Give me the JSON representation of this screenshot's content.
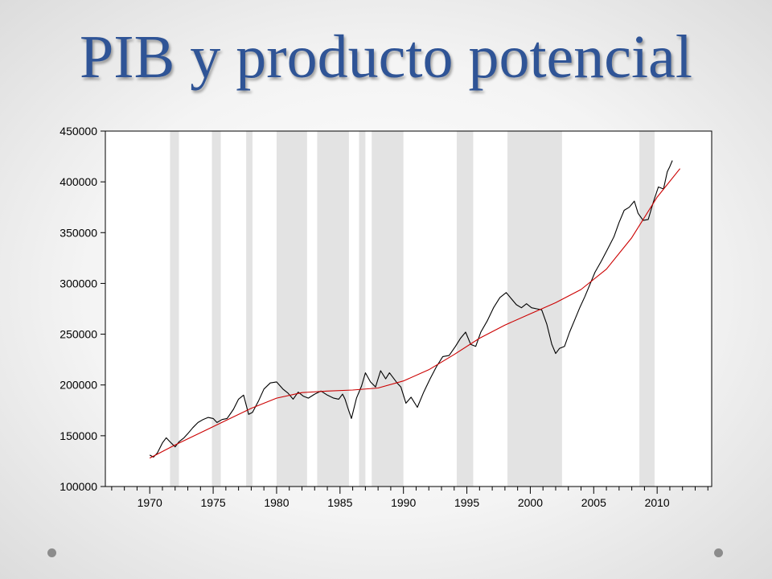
{
  "slide": {
    "title": "PIB y producto potencial",
    "dot_color": "#8c8c8c",
    "title_color": "#2f5496"
  },
  "chart_data": {
    "type": "line",
    "title": "",
    "xlabel": "",
    "ylabel": "",
    "xlim": [
      1966.5,
      2014.3
    ],
    "ylim": [
      100000,
      450000
    ],
    "xticks": [
      1970,
      1975,
      1980,
      1985,
      1990,
      1995,
      2000,
      2005,
      2010
    ],
    "xtick_labels": [
      "1970",
      "1975",
      "1980",
      "1985",
      "1990",
      "1995",
      "2000",
      "2005",
      "2010"
    ],
    "yticks": [
      100000,
      150000,
      200000,
      250000,
      300000,
      350000,
      400000,
      450000
    ],
    "ytick_labels": [
      "100000",
      "150000",
      "200000",
      "250000",
      "300000",
      "350000",
      "400000",
      "450000"
    ],
    "grid": false,
    "legend": "none",
    "shaded_periods": [
      [
        1971.6,
        1972.3
      ],
      [
        1974.9,
        1975.6
      ],
      [
        1977.6,
        1978.1
      ],
      [
        1980.0,
        1982.4
      ],
      [
        1983.2,
        1985.7
      ],
      [
        1986.5,
        1987.0
      ],
      [
        1987.5,
        1990.0
      ],
      [
        1994.2,
        1995.5
      ],
      [
        1998.2,
        2002.5
      ],
      [
        2008.6,
        2009.8
      ]
    ],
    "series": [
      {
        "color": "#000000",
        "x": [
          1970.0,
          1970.3,
          1970.6,
          1971.0,
          1971.3,
          1971.6,
          1972.0,
          1972.3,
          1972.7,
          1973.0,
          1973.4,
          1973.8,
          1974.2,
          1974.6,
          1975.0,
          1975.3,
          1975.7,
          1976.1,
          1976.6,
          1977.0,
          1977.4,
          1977.8,
          1978.1,
          1978.6,
          1979.0,
          1979.5,
          1980.0,
          1980.5,
          1980.9,
          1981.3,
          1981.7,
          1982.1,
          1982.5,
          1983.0,
          1983.5,
          1984.0,
          1984.5,
          1984.9,
          1985.2,
          1985.4,
          1985.6,
          1985.9,
          1986.3,
          1986.7,
          1987.0,
          1987.4,
          1987.8,
          1988.2,
          1988.6,
          1988.9,
          1989.2,
          1989.5,
          1989.8,
          1990.2,
          1990.6,
          1991.1,
          1991.6,
          1992.1,
          1992.6,
          1993.1,
          1993.6,
          1994.1,
          1994.5,
          1994.9,
          1995.3,
          1995.7,
          1996.1,
          1996.6,
          1997.1,
          1997.6,
          1998.1,
          1998.5,
          1998.9,
          1999.3,
          1999.7,
          2000.1,
          2000.5,
          2000.9,
          2001.3,
          2001.7,
          2002.0,
          2002.3,
          2002.7,
          2003.1,
          2003.5,
          2003.9,
          2004.3,
          2004.7,
          2005.1,
          2005.6,
          2006.1,
          2006.6,
          2007.0,
          2007.4,
          2007.8,
          2008.2,
          2008.5,
          2008.9,
          2009.3,
          2009.7,
          2010.1,
          2010.5,
          2010.8,
          2011.0,
          2011.2
        ],
        "y": [
          131000,
          129000,
          133000,
          143000,
          148000,
          144000,
          139000,
          144000,
          148000,
          152000,
          158000,
          163000,
          166000,
          168000,
          167000,
          163000,
          166000,
          167000,
          176000,
          186000,
          190000,
          171000,
          173000,
          185000,
          196000,
          202000,
          203000,
          196000,
          192000,
          186000,
          193000,
          189000,
          187000,
          191000,
          194000,
          190000,
          187000,
          186000,
          191000,
          186000,
          178000,
          167000,
          187000,
          199000,
          212000,
          203000,
          198000,
          214000,
          206000,
          212000,
          207000,
          202000,
          198000,
          182000,
          188000,
          178000,
          193000,
          206000,
          218000,
          228000,
          229000,
          238000,
          246000,
          252000,
          240000,
          238000,
          252000,
          263000,
          276000,
          286000,
          291000,
          285000,
          279000,
          276000,
          280000,
          276000,
          275000,
          274000,
          260000,
          240000,
          231000,
          236000,
          238000,
          252000,
          264000,
          276000,
          287000,
          299000,
          311000,
          322000,
          334000,
          346000,
          360000,
          372000,
          375000,
          381000,
          369000,
          362000,
          363000,
          380000,
          395000,
          393000,
          410000,
          415000,
          421000
        ]
      },
      {
        "color": "#cc0000",
        "x": [
          1970.0,
          1972.0,
          1974.0,
          1976.0,
          1978.0,
          1980.0,
          1982.0,
          1984.0,
          1986.0,
          1988.0,
          1990.0,
          1992.0,
          1994.0,
          1996.0,
          1998.0,
          2000.0,
          2002.0,
          2004.0,
          2006.0,
          2008.0,
          2010.0,
          2011.8
        ],
        "y": [
          128000,
          141000,
          153000,
          165000,
          177000,
          187000,
          192500,
          194000,
          195000,
          197000,
          204000,
          215000,
          230000,
          246000,
          259000,
          270000,
          281000,
          294000,
          314000,
          345000,
          385000,
          413000
        ]
      }
    ]
  }
}
